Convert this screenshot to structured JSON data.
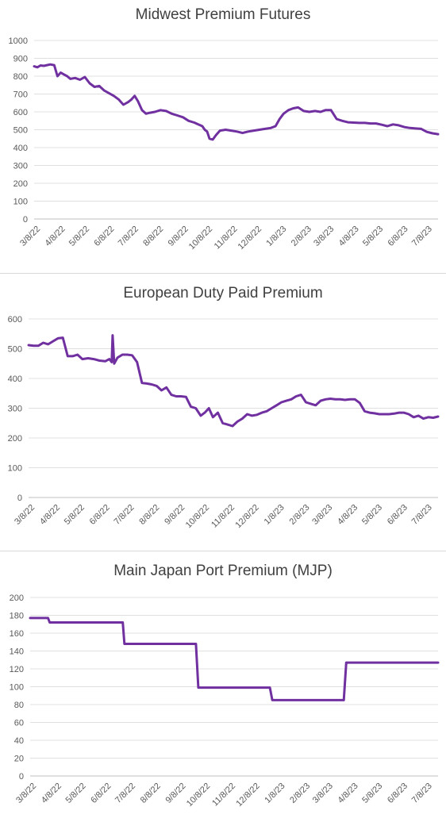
{
  "chart_data": [
    {
      "type": "line",
      "title": "Midwest Premium Futures",
      "ylim": [
        0,
        1000
      ],
      "yticks": [
        "0",
        "100",
        "200",
        "300",
        "400",
        "500",
        "600",
        "700",
        "800",
        "900",
        "1000"
      ],
      "xticks": [
        "3/8/22",
        "4/8/22",
        "5/8/22",
        "6/8/22",
        "7/8/22",
        "8/8/22",
        "9/8/22",
        "10/8/22",
        "11/8/22",
        "12/8/22",
        "1/8/23",
        "2/8/23",
        "3/8/23",
        "4/8/23",
        "5/8/23",
        "6/8/23",
        "7/8/23"
      ],
      "grid": true,
      "color": "#7030a0",
      "series": [
        {
          "x": [
            "2022-03-08",
            "2022-03-12",
            "2022-03-16",
            "2022-03-20",
            "2022-03-24",
            "2022-03-28",
            "2022-04-02",
            "2022-04-06",
            "2022-04-10",
            "2022-04-14",
            "2022-04-18",
            "2022-04-22",
            "2022-04-28",
            "2022-05-04",
            "2022-05-10",
            "2022-05-16",
            "2022-05-22",
            "2022-05-28",
            "2022-06-03",
            "2022-06-09",
            "2022-06-15",
            "2022-06-21",
            "2022-06-27",
            "2022-07-03",
            "2022-07-07",
            "2022-07-11",
            "2022-07-15",
            "2022-07-20",
            "2022-07-25",
            "2022-07-30",
            "2022-08-05",
            "2022-08-12",
            "2022-08-19",
            "2022-08-26",
            "2022-09-02",
            "2022-09-09",
            "2022-09-16",
            "2022-09-23",
            "2022-09-28",
            "2022-10-03",
            "2022-10-06",
            "2022-10-09",
            "2022-10-12",
            "2022-10-16",
            "2022-10-20",
            "2022-10-25",
            "2022-11-01",
            "2022-11-08",
            "2022-11-15",
            "2022-11-22",
            "2022-11-29",
            "2022-12-06",
            "2022-12-13",
            "2022-12-20",
            "2022-12-27",
            "2023-01-02",
            "2023-01-07",
            "2023-01-12",
            "2023-01-18",
            "2023-01-24",
            "2023-01-30",
            "2023-02-06",
            "2023-02-13",
            "2023-02-20",
            "2023-02-27",
            "2023-03-05",
            "2023-03-12",
            "2023-03-19",
            "2023-03-26",
            "2023-04-02",
            "2023-04-09",
            "2023-04-16",
            "2023-04-23",
            "2023-04-30",
            "2023-05-07",
            "2023-05-14",
            "2023-05-21",
            "2023-05-28",
            "2023-06-04",
            "2023-06-11",
            "2023-06-18",
            "2023-06-25",
            "2023-07-02",
            "2023-07-09",
            "2023-07-16",
            "2023-07-23"
          ],
          "values": [
            855,
            850,
            860,
            858,
            862,
            866,
            862,
            800,
            820,
            810,
            800,
            785,
            790,
            780,
            795,
            760,
            740,
            745,
            720,
            705,
            690,
            670,
            640,
            655,
            670,
            690,
            660,
            610,
            590,
            595,
            600,
            610,
            605,
            590,
            580,
            570,
            550,
            540,
            530,
            520,
            500,
            490,
            450,
            445,
            470,
            495,
            500,
            495,
            490,
            482,
            490,
            495,
            500,
            505,
            510,
            520,
            560,
            590,
            610,
            620,
            625,
            605,
            600,
            605,
            600,
            610,
            610,
            560,
            550,
            542,
            540,
            538,
            538,
            535,
            535,
            528,
            520,
            530,
            525,
            515,
            510,
            507,
            505,
            488,
            480,
            475
          ]
        }
      ]
    },
    {
      "type": "line",
      "title": "European Duty Paid Premium",
      "ylim": [
        0,
        600
      ],
      "yticks": [
        "0",
        "100",
        "200",
        "300",
        "400",
        "500",
        "600"
      ],
      "xticks": [
        "3/8/22",
        "4/8/22",
        "5/8/22",
        "6/8/22",
        "7/8/22",
        "8/8/22",
        "9/8/22",
        "10/8/22",
        "11/8/22",
        "12/8/22",
        "1/8/23",
        "2/8/23",
        "3/8/23",
        "4/8/23",
        "5/8/23",
        "6/8/23",
        "7/8/23"
      ],
      "grid": true,
      "color": "#7030a0",
      "series": [
        {
          "x": [
            "2022-03-08",
            "2022-03-14",
            "2022-03-20",
            "2022-03-26",
            "2022-04-01",
            "2022-04-07",
            "2022-04-13",
            "2022-04-19",
            "2022-04-25",
            "2022-05-01",
            "2022-05-07",
            "2022-05-13",
            "2022-05-20",
            "2022-05-27",
            "2022-06-03",
            "2022-06-10",
            "2022-06-15",
            "2022-06-18",
            "2022-06-19",
            "2022-06-21",
            "2022-06-25",
            "2022-07-01",
            "2022-07-07",
            "2022-07-13",
            "2022-07-19",
            "2022-07-25",
            "2022-07-31",
            "2022-08-06",
            "2022-08-12",
            "2022-08-18",
            "2022-08-24",
            "2022-08-30",
            "2022-09-05",
            "2022-09-11",
            "2022-09-17",
            "2022-09-23",
            "2022-09-29",
            "2022-10-05",
            "2022-10-10",
            "2022-10-15",
            "2022-10-20",
            "2022-10-26",
            "2022-11-01",
            "2022-11-07",
            "2022-11-13",
            "2022-11-19",
            "2022-11-25",
            "2022-12-01",
            "2022-12-07",
            "2022-12-13",
            "2022-12-19",
            "2022-12-25",
            "2022-12-31",
            "2023-01-06",
            "2023-01-12",
            "2023-01-18",
            "2023-01-24",
            "2023-01-30",
            "2023-02-05",
            "2023-02-11",
            "2023-02-17",
            "2023-02-23",
            "2023-03-01",
            "2023-03-07",
            "2023-03-13",
            "2023-03-19",
            "2023-03-25",
            "2023-03-31",
            "2023-04-06",
            "2023-04-12",
            "2023-04-18",
            "2023-04-24",
            "2023-04-30",
            "2023-05-06",
            "2023-05-12",
            "2023-05-18",
            "2023-05-24",
            "2023-05-30",
            "2023-06-05",
            "2023-06-11",
            "2023-06-17",
            "2023-06-23",
            "2023-06-29",
            "2023-07-05",
            "2023-07-11",
            "2023-07-17",
            "2023-07-23"
          ],
          "values": [
            512,
            510,
            510,
            520,
            515,
            525,
            535,
            537,
            475,
            475,
            480,
            465,
            468,
            465,
            460,
            458,
            465,
            455,
            545,
            450,
            470,
            480,
            480,
            478,
            455,
            385,
            383,
            380,
            375,
            360,
            370,
            345,
            340,
            340,
            338,
            305,
            300,
            275,
            285,
            300,
            270,
            285,
            250,
            245,
            240,
            255,
            265,
            280,
            275,
            278,
            285,
            290,
            300,
            310,
            320,
            325,
            330,
            340,
            345,
            320,
            315,
            310,
            325,
            330,
            332,
            330,
            330,
            328,
            330,
            330,
            318,
            290,
            285,
            283,
            280,
            280,
            280,
            282,
            285,
            285,
            280,
            270,
            275,
            265,
            270,
            268,
            272
          ]
        }
      ]
    },
    {
      "type": "line",
      "title": "Main Japan Port Premium (MJP)",
      "ylim": [
        0,
        200
      ],
      "yticks": [
        "0",
        "20",
        "40",
        "60",
        "80",
        "100",
        "120",
        "140",
        "160",
        "180",
        "200"
      ],
      "xticks": [
        "3/8/22",
        "4/8/22",
        "5/8/22",
        "6/8/22",
        "7/8/22",
        "8/8/22",
        "9/8/22",
        "10/8/22",
        "11/8/22",
        "12/8/22",
        "1/8/23",
        "2/8/23",
        "3/8/23",
        "4/8/23",
        "5/8/23",
        "6/8/23",
        "7/8/23"
      ],
      "grid": true,
      "color": "#7030a0",
      "series": [
        {
          "x": [
            "2022-03-08",
            "2022-03-30",
            "2022-04-01",
            "2022-06-30",
            "2022-07-02",
            "2022-09-28",
            "2022-10-01",
            "2022-12-28",
            "2022-12-31",
            "2023-03-29",
            "2023-04-01",
            "2023-07-23"
          ],
          "values": [
            177,
            177,
            172,
            172,
            148,
            148,
            99,
            99,
            85,
            85,
            127,
            127
          ]
        }
      ]
    }
  ]
}
